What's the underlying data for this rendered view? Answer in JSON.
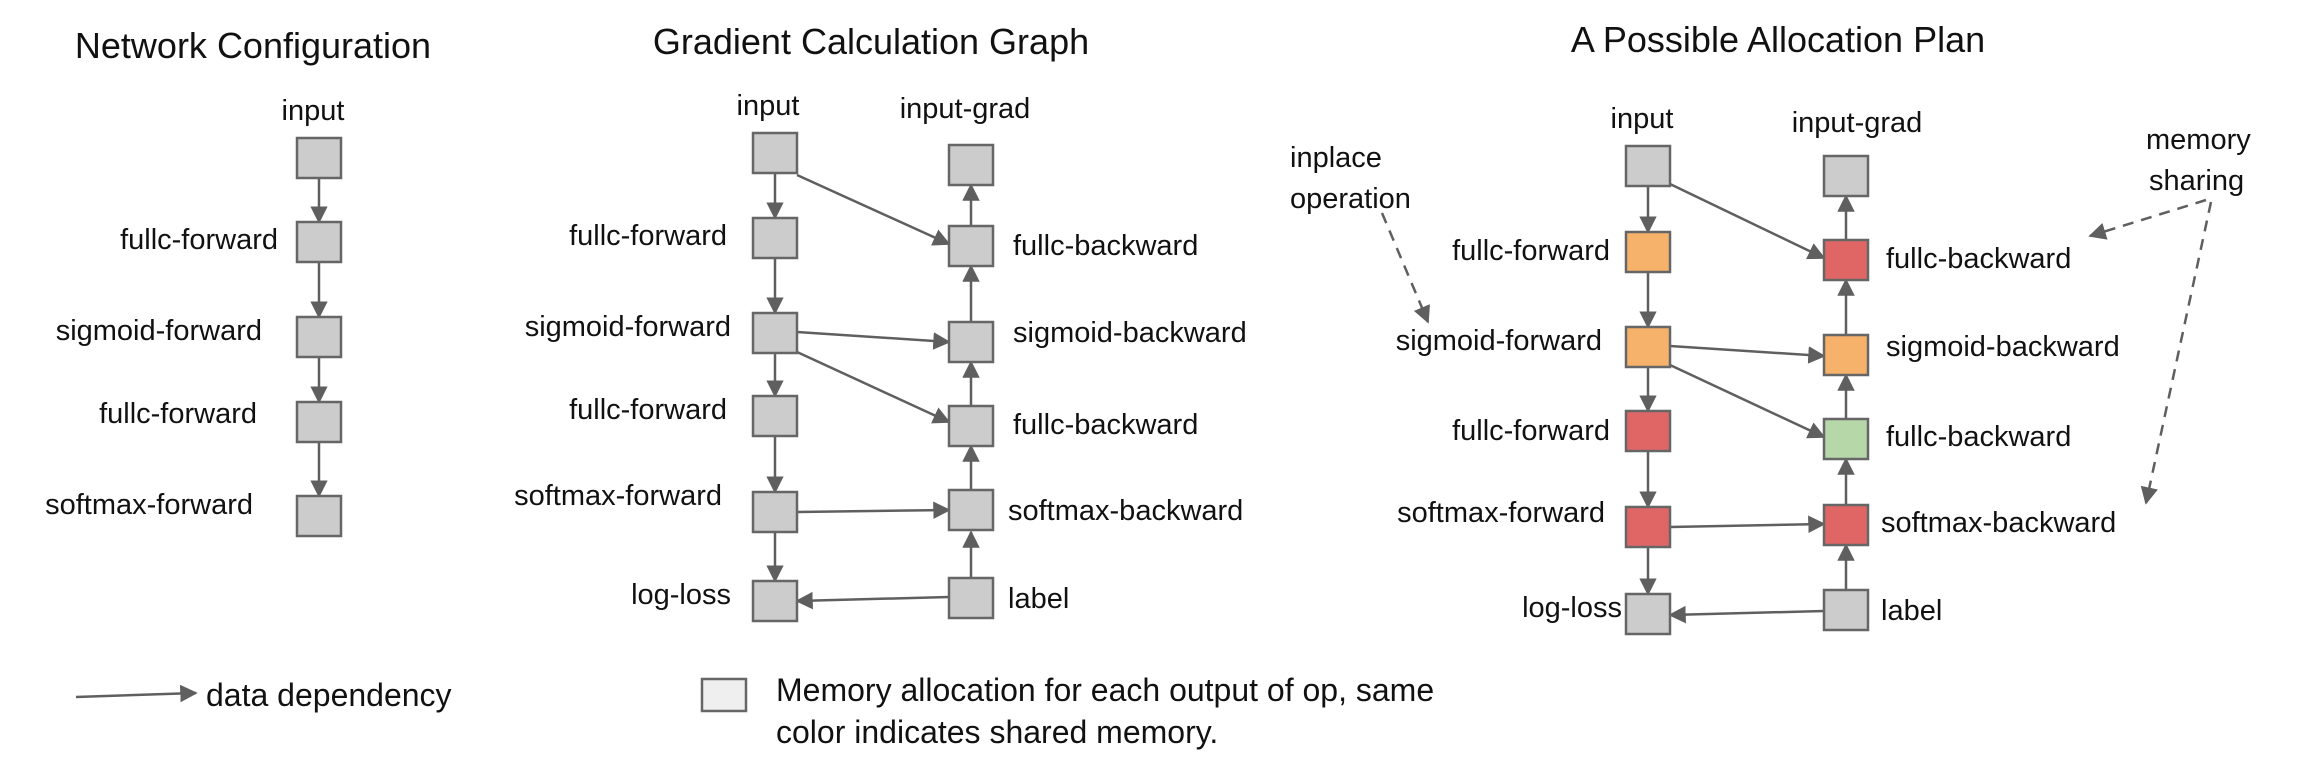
{
  "colors": {
    "gray": "#cccccc",
    "orange": "#f6b26b",
    "red": "#e06666",
    "green": "#b6d7a8",
    "legend_box": "#efefef",
    "edge": "#5f5f5f"
  },
  "panel1": {
    "title": "Network Configuration",
    "labels": {
      "input": "input",
      "fullc_forward_1": "fullc-forward",
      "sigmoid_forward": "sigmoid-forward",
      "fullc_forward_2": "fullc-forward",
      "softmax_forward": "softmax-forward"
    }
  },
  "panel2": {
    "title": "Gradient Calculation Graph",
    "labels": {
      "input": "input",
      "input_grad": "input-grad",
      "fullc_forward_1": "fullc-forward",
      "sigmoid_forward": "sigmoid-forward",
      "fullc_forward_2": "fullc-forward",
      "softmax_forward": "softmax-forward",
      "log_loss": "log-loss",
      "fullc_backward_1": "fullc-backward",
      "sigmoid_backward": "sigmoid-backward",
      "fullc_backward_2": "fullc-backward",
      "softmax_backward": "softmax-backward",
      "label": "label"
    }
  },
  "panel3": {
    "title": "A Possible Allocation Plan",
    "labels": {
      "input": "input",
      "input_grad": "input-grad",
      "fullc_forward_1": "fullc-forward",
      "sigmoid_forward": "sigmoid-forward",
      "fullc_forward_2": "fullc-forward",
      "softmax_forward": "softmax-forward",
      "log_loss": "log-loss",
      "fullc_backward_1": "fullc-backward",
      "sigmoid_backward": "sigmoid-backward",
      "fullc_backward_2": "fullc-backward",
      "softmax_backward": "softmax-backward",
      "label": "label"
    },
    "annotations": {
      "inplace_line1": "inplace",
      "inplace_line2": "operation",
      "memory_line1": "memory",
      "memory_line2": "sharing"
    },
    "node_colors": {
      "input": "gray",
      "input_grad": "gray",
      "fullc_forward_1": "orange",
      "sigmoid_forward": "orange",
      "fullc_forward_2": "red",
      "softmax_forward": "red",
      "log_loss": "gray",
      "fullc_backward_1": "red",
      "sigmoid_backward": "orange",
      "fullc_backward_2": "green",
      "softmax_backward": "red",
      "label": "gray"
    }
  },
  "legend": {
    "arrow_text": "data dependency",
    "box_line1": "Memory allocation for each output of op, same",
    "box_line2": "color indicates shared memory."
  }
}
